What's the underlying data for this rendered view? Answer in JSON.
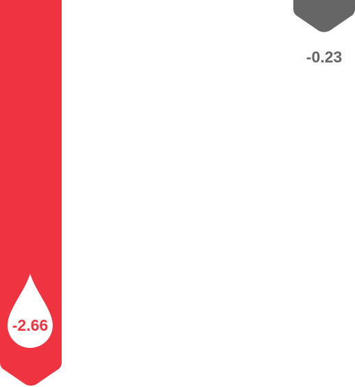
{
  "chart_data": {
    "type": "bar",
    "categories": [
      "",
      ""
    ],
    "series": [
      {
        "values": [
          -2.66,
          -0.23
        ]
      }
    ],
    "data_labels": [
      "-2.66",
      "-0.23"
    ],
    "colors": [
      "#ef3340",
      "#666666"
    ],
    "label_colors": [
      "#ef3340",
      "#666666"
    ],
    "grid": false,
    "legend": "none",
    "ylim": [
      -2.66,
      0
    ]
  }
}
